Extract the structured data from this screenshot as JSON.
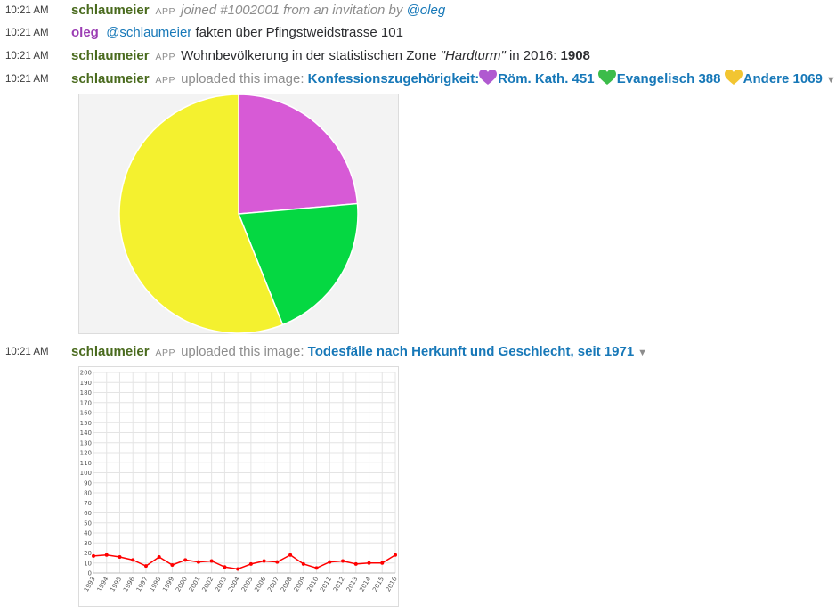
{
  "messages": [
    {
      "time": "10:21 AM",
      "user": "schlaumeier",
      "badge": "APP",
      "pre": "joined #1002001 from an invitation by",
      "link": "@oleg"
    },
    {
      "time": "10:21 AM",
      "user": "oleg",
      "mention": "@schlaumeier",
      "text": "fakten über Pfingstweidstrasse 101"
    },
    {
      "time": "10:21 AM",
      "user": "schlaumeier",
      "badge": "APP",
      "pre": "Wohnbevölkerung in der statistischen Zone",
      "zone": "\"Hardturm\"",
      "mid": "in 2016:",
      "value": "1908"
    },
    {
      "time": "10:21 AM",
      "user": "schlaumeier",
      "badge": "APP",
      "pre": "uploaded this image:",
      "title": "Konfessionszugehörigkeit:",
      "items": [
        {
          "icon": "purple-heart-icon",
          "color": "#b05ad0",
          "label": "Röm. Kath. 451"
        },
        {
          "icon": "green-heart-icon",
          "color": "#3cbc4a",
          "label": "Evangelisch 388"
        },
        {
          "icon": "yellow-heart-icon",
          "color": "#f2c531",
          "label": "Andere 1069"
        }
      ]
    },
    {
      "time": "10:21 AM",
      "user": "schlaumeier",
      "badge": "APP",
      "pre": "uploaded this image:",
      "title": "Todesfälle nach Herkunft und Geschlecht, seit 1971"
    }
  ],
  "chart_data": [
    {
      "type": "pie",
      "categories": [
        "Röm. Kath.",
        "Evangelisch",
        "Andere"
      ],
      "values": [
        451,
        388,
        1069
      ],
      "colors": [
        "#d75ad6",
        "#05d842",
        "#f4f12f"
      ]
    },
    {
      "type": "line",
      "x": [
        "1993",
        "1994",
        "1995",
        "1996",
        "1997",
        "1998",
        "1999",
        "2000",
        "2001",
        "2002",
        "2003",
        "2004",
        "2005",
        "2006",
        "2007",
        "2008",
        "2009",
        "2010",
        "2011",
        "2012",
        "2013",
        "2014",
        "2015",
        "2016"
      ],
      "series": [
        {
          "color": "#ff0000",
          "values": [
            17,
            18,
            16,
            13,
            7,
            16,
            8,
            13,
            11,
            12,
            6,
            4,
            9,
            12,
            11,
            18,
            9,
            5,
            11,
            12,
            9,
            10,
            10,
            18
          ]
        }
      ],
      "ylim": [
        0,
        200
      ],
      "yticks": [
        0,
        10,
        20,
        30,
        40,
        50,
        60,
        70,
        80,
        90,
        100,
        110,
        120,
        130,
        140,
        150,
        160,
        170,
        180,
        190,
        200
      ],
      "grid": true
    }
  ]
}
